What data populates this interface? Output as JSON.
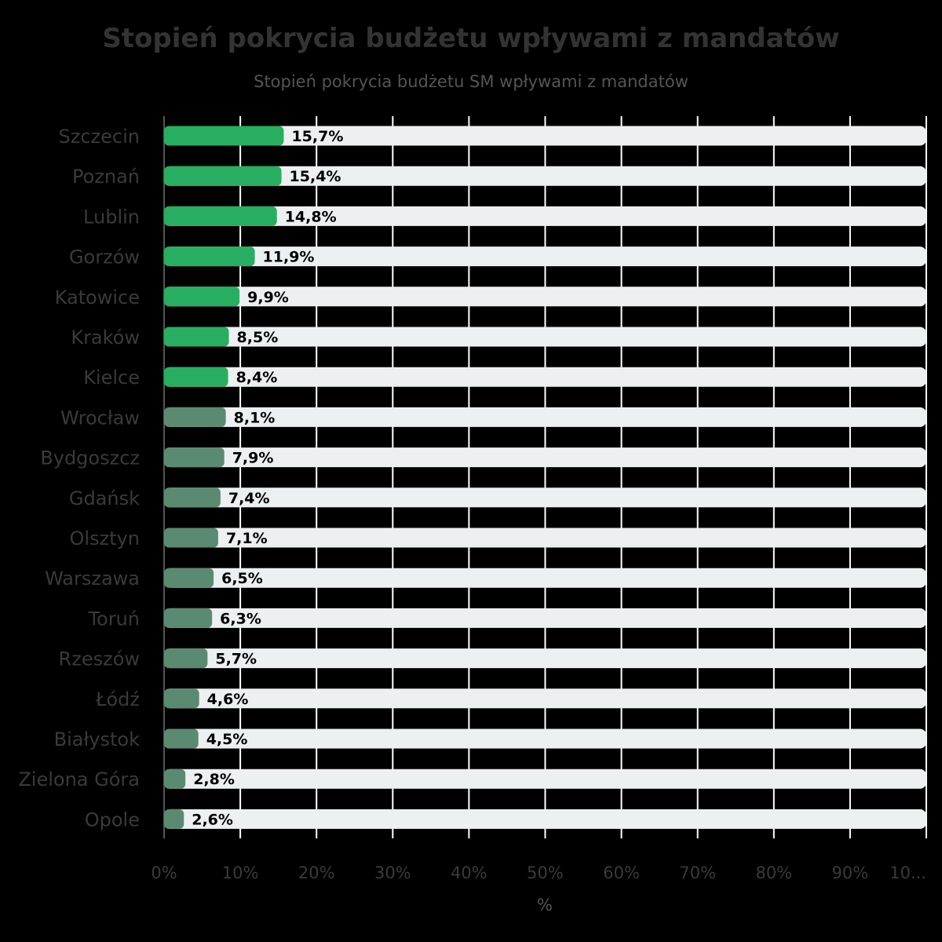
{
  "chart_data": {
    "type": "bar",
    "orientation": "horizontal",
    "title": "Stopień pokrycia budżetu wpływami z mandatów",
    "subtitle": "Stopień pokrycia budżetu SM wpływami z mandatów",
    "xlabel": "%",
    "ylabel": "",
    "xlim": [
      0,
      100
    ],
    "x_ticks": [
      "0%",
      "10%",
      "20%",
      "30%",
      "40%",
      "50%",
      "60%",
      "70%",
      "80%",
      "90%",
      "10..."
    ],
    "grid": true,
    "legend": "none",
    "categories": [
      "Szczecin",
      "Poznań",
      "Lublin",
      "Gorzów",
      "Katowice",
      "Kraków",
      "Kielce",
      "Wrocław",
      "Bydgoszcz",
      "Gdańsk",
      "Olsztyn",
      "Warszawa",
      "Toruń",
      "Rzeszów",
      "Łódź",
      "Białystok",
      "Zielona Góra",
      "Opole"
    ],
    "values": [
      15.7,
      15.4,
      14.8,
      11.9,
      9.9,
      8.5,
      8.4,
      8.1,
      7.9,
      7.4,
      7.1,
      6.5,
      6.3,
      5.7,
      4.6,
      4.5,
      2.8,
      2.6
    ],
    "value_labels": [
      "15,7%",
      "15,4%",
      "14,8%",
      "11,9%",
      "9,9%",
      "8,5%",
      "8,4%",
      "8,1%",
      "7,9%",
      "7,4%",
      "7,1%",
      "6,5%",
      "6,3%",
      "5,7%",
      "4,6%",
      "4,5%",
      "2,8%",
      "2,6%"
    ],
    "highlight_count": 7,
    "colors": {
      "highlight": "#27ae60",
      "default": "#5b8a72",
      "track": "#ecf0f1",
      "grid": "#ffffff",
      "axis": "#555555"
    }
  }
}
